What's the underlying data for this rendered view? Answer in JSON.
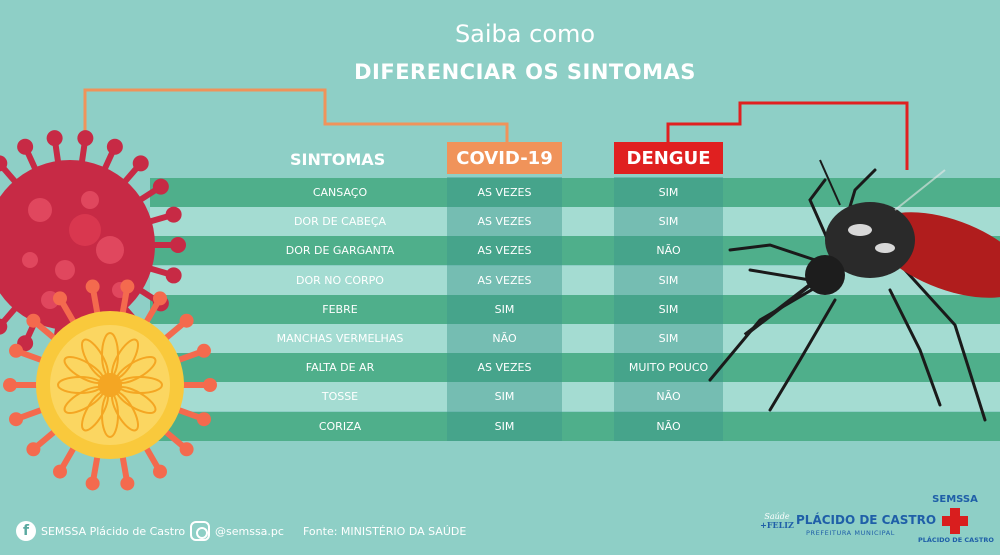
{
  "title": {
    "line1": "Saiba como",
    "line2": "DIFERENCIAR OS SINTOMAS"
  },
  "headers": {
    "symptoms": "SINTOMAS",
    "covid": "COVID-19",
    "dengue": "DENGUE"
  },
  "rows": [
    {
      "symptom": "CANSAÇO",
      "covid": "AS VEZES",
      "dengue": "SIM"
    },
    {
      "symptom": "DOR DE CABEÇA",
      "covid": "AS VEZES",
      "dengue": "SIM"
    },
    {
      "symptom": "DOR DE GARGANTA",
      "covid": "AS VEZES",
      "dengue": "NÃO"
    },
    {
      "symptom": "DOR NO CORPO",
      "covid": "AS VEZES",
      "dengue": "SIM"
    },
    {
      "symptom": "FEBRE",
      "covid": "SIM",
      "dengue": "SIM"
    },
    {
      "symptom": "MANCHAS VERMELHAS",
      "covid": "NÃO",
      "dengue": "SIM"
    },
    {
      "symptom": "FALTA DE AR",
      "covid": "AS VEZES",
      "dengue": "MUITO POUCO"
    },
    {
      "symptom": "TOSSE",
      "covid": "SIM",
      "dengue": "NÃO"
    },
    {
      "symptom": "CORIZA",
      "covid": "SIM",
      "dengue": "NÃO"
    }
  ],
  "footer": {
    "facebook": "SEMSSA Plácido de Castro",
    "instagram": "@semssa.pc",
    "source": "Fonte: MINISTÉRIO DA SAÚDE"
  },
  "logos": {
    "saude_feliz_line1": "Saúde",
    "saude_feliz_line2": "+FELIZ",
    "placido_name": "PLÁCIDO DE CASTRO",
    "placido_sub": "PREFEITURA MUNICIPAL",
    "semssa_name": "SEMSSA",
    "semssa_sub": "PLÁCIDO DE CASTRO"
  },
  "colors": {
    "background": "#8ecfc6",
    "stripe_dark": "#4faf8b",
    "stripe_light": "#a4dcd2",
    "covid": "#f0935a",
    "dengue": "#e02020",
    "virus_red": "#c72a45",
    "virus_yellow": "#f9c93c"
  }
}
